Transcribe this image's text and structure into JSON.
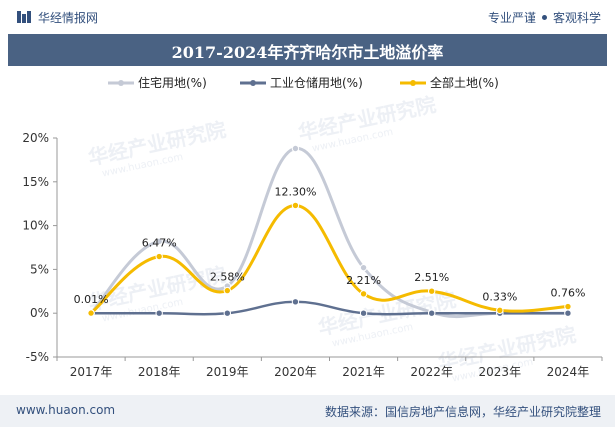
{
  "header": {
    "brand": "华经情报网",
    "tag1": "专业严谨",
    "tag2": "客观科学"
  },
  "footer": {
    "website": "www.huaon.com",
    "source": "数据来源：国信房地产信息网，华经产业研究院整理"
  },
  "watermark": "华经产业研究院",
  "watermark_url": "www.huaon.com",
  "colors": {
    "residential": "#c5cad6",
    "industrial": "#5f7090",
    "all": "#f5bb00",
    "title_bg": "#4a6283"
  },
  "chart_data": {
    "type": "line",
    "title": "2017-2024年齐齐哈尔市土地溢价率",
    "categories": [
      "2017年",
      "2018年",
      "2019年",
      "2020年",
      "2021年",
      "2022年",
      "2023年",
      "2024年"
    ],
    "ylim": [
      -5,
      20
    ],
    "yticks": [
      "-5%",
      "0%",
      "5%",
      "10%",
      "15%",
      "20%"
    ],
    "ytick_values": [
      -5,
      0,
      5,
      10,
      15,
      20
    ],
    "series": [
      {
        "name": "住宅用地(%)",
        "values": [
          0.01,
          8.2,
          3.1,
          18.8,
          5.2,
          0.1,
          0.0,
          0.0
        ]
      },
      {
        "name": "工业仓储用地(%)",
        "values": [
          0,
          0,
          0,
          1.3,
          0,
          0,
          0,
          0
        ]
      },
      {
        "name": "全部土地(%)",
        "values": [
          0.01,
          6.47,
          2.58,
          12.3,
          2.21,
          2.51,
          0.33,
          0.76
        ],
        "labels": [
          "0.01%",
          "6.47%",
          "2.58%",
          "12.30%",
          "2.21%",
          "2.51%",
          "0.33%",
          "0.76%"
        ]
      }
    ]
  }
}
